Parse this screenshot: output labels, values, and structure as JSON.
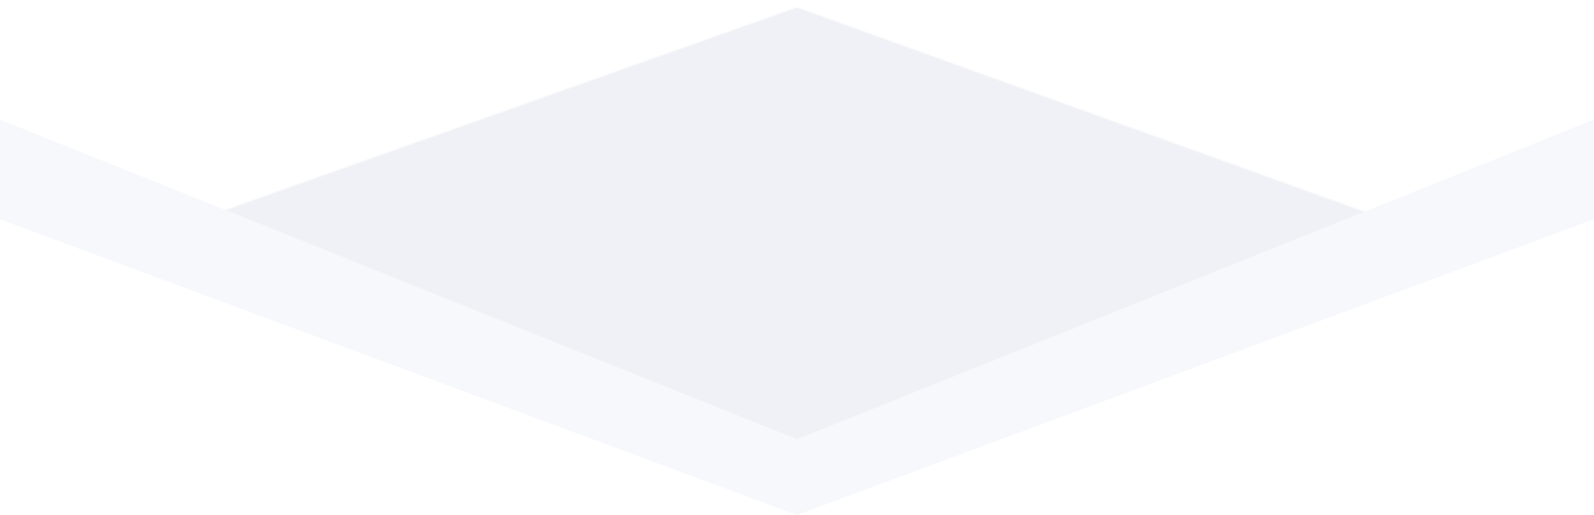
{
  "colors": {
    "background": "#ffffff",
    "diamond_fill": "#f0f1f6",
    "diamond_edge": "#e9eaf0",
    "chevron_fill": "#f7f8fc"
  },
  "shapes": [
    "diamond-shape",
    "chevron-band"
  ]
}
